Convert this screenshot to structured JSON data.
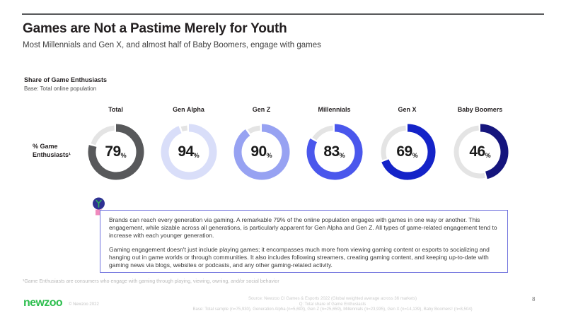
{
  "page": {
    "title": "Games are Not a Pastime Merely for Youth",
    "subtitle": "Most Millennials and Gen X, and almost half of Baby Boomers, engage with games",
    "page_number": "8"
  },
  "section": {
    "label": "Share of Game Enthusiasts",
    "base": "Base: Total online population",
    "row_label": "% Game Enthusiasts¹"
  },
  "chart_data": {
    "type": "pie",
    "subtype": "donut-multiples",
    "metric": "% Game Enthusiasts",
    "categories": [
      "Total",
      "Gen Alpha",
      "Gen Z",
      "Millennials",
      "Gen X",
      "Baby Boomers"
    ],
    "values": [
      79,
      94,
      90,
      83,
      69,
      46
    ],
    "unit": "%",
    "colors": [
      "#58595b",
      "#d9def9",
      "#97a2f2",
      "#4a57ec",
      "#1423c8",
      "#15157d"
    ],
    "track_color": "#e4e4e4",
    "title": "Share of Game Enthusiasts",
    "base_note": "Base: Total online population"
  },
  "callout": {
    "icon": "lightbulb-icon",
    "paragraph1": "Brands can reach every generation via gaming. A remarkable 79% of the online population engages with games in one way or another. This engagement, while sizable across all generations, is particularly apparent for Gen Alpha and Gen Z. All types of game-related engagement tend to increase with each younger generation.",
    "paragraph2": "Gaming engagement doesn't just include playing games; it encompasses much more from viewing gaming content or esports to socializing and hanging out in game worlds or through communities. It also includes following streamers, creating gaming content, and keeping up-to-date with gaming news via blogs, websites or podcasts, and any other gaming-related activity."
  },
  "footnote": "¹Game Enthusiasts are consumers who engage with gaming through playing, viewing, owning, and/or social behavior",
  "footer": {
    "logo": "newzoo",
    "copyright": "© Newzoo 2022",
    "source_line1": "Source: Newzoo CI Games & Esports 2022 (Global weighted average across 36 markets)",
    "source_line2": "Q: Total share of Game Enthusiasts",
    "source_line3": "Base: Total sample (n=75,930), Generation Alpha (n=5,693), Gen Z (n=25,659), Millennials (n=23,935), Gen X (n=14,139), Baby Boomers¹ (n=8,504)"
  }
}
